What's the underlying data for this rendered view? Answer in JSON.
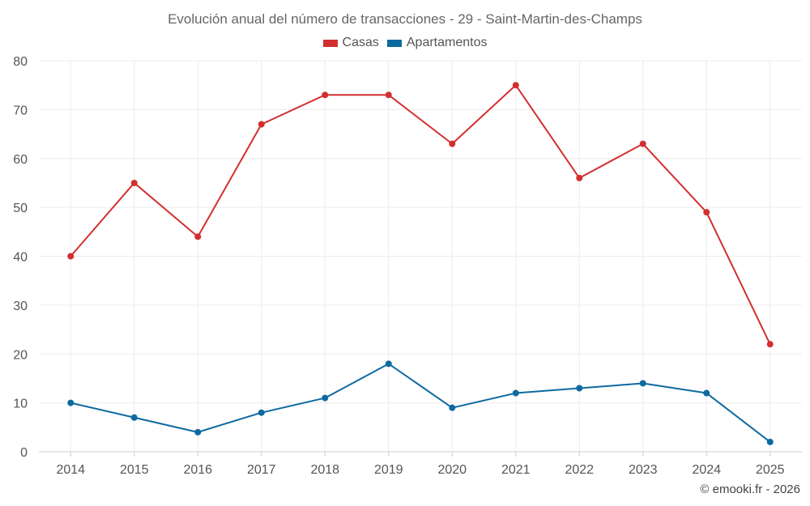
{
  "chart_data": {
    "type": "line",
    "title": "Evolución anual del número de transacciones - 29 - Saint-Martin-des-Champs",
    "xlabel": "",
    "ylabel": "",
    "categories": [
      "2014",
      "2015",
      "2016",
      "2017",
      "2018",
      "2019",
      "2020",
      "2021",
      "2022",
      "2023",
      "2024",
      "2025"
    ],
    "ylim": [
      0,
      80
    ],
    "yticks": [
      0,
      10,
      20,
      30,
      40,
      50,
      60,
      70,
      80
    ],
    "grid": true,
    "legend_position": "top-center",
    "series": [
      {
        "name": "Casas",
        "color": "#d32f2f",
        "values": [
          40,
          55,
          44,
          67,
          73,
          73,
          63,
          75,
          56,
          63,
          49,
          22
        ]
      },
      {
        "name": "Apartamentos",
        "color": "#0d6aa0",
        "values": [
          10,
          7,
          4,
          8,
          11,
          18,
          9,
          12,
          13,
          14,
          12,
          2
        ]
      }
    ]
  },
  "footer": {
    "credit": "© emooki.fr - 2026"
  }
}
